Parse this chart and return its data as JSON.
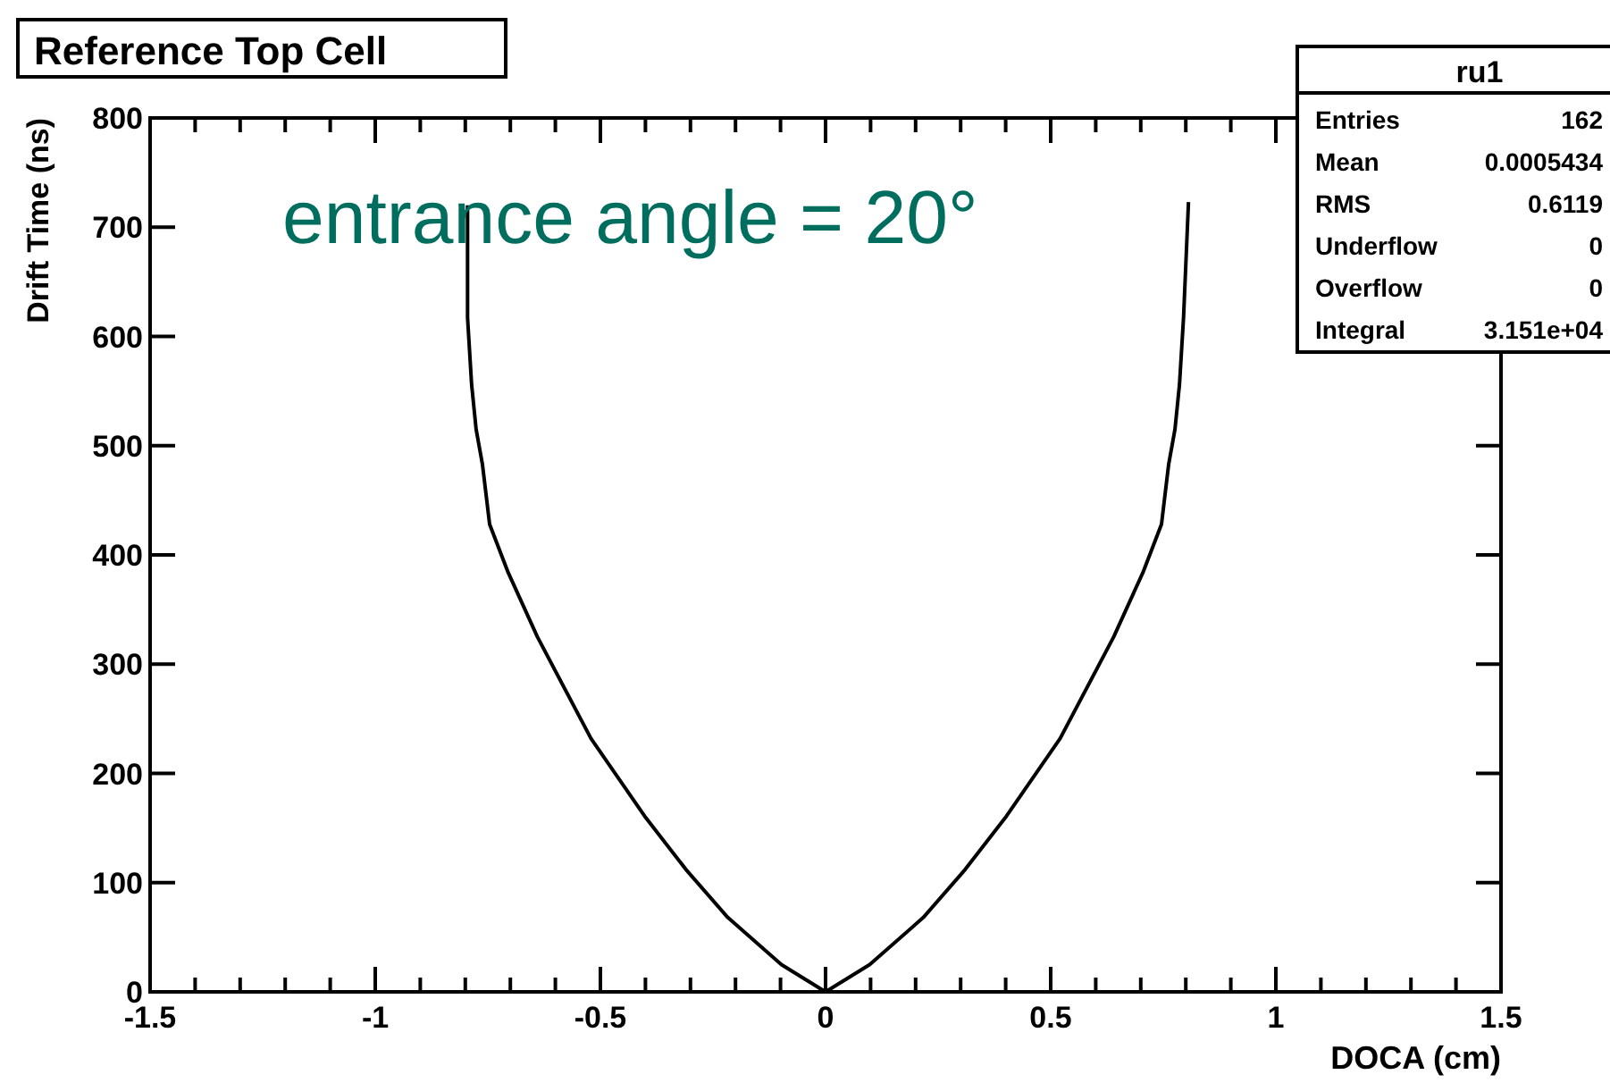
{
  "chart_data": {
    "type": "line",
    "title": "Reference Top Cell",
    "xlabel": "DOCA (cm)",
    "ylabel": "Drift Time (ns)",
    "annotations": [
      "entrance angle = 20°",
      "ru1",
      "Entries",
      "162",
      "Mean",
      "0.0005434",
      "RMS",
      "0.6119",
      "Underflow",
      "0",
      "Overflow",
      "0",
      "Integral",
      "3.151e+04"
    ],
    "xlim": [
      -1.5,
      1.5
    ],
    "ylim": [
      0,
      800
    ],
    "xticks": [
      -1.5,
      {
        "value": -1.4,
        "label": null
      },
      {
        "value": -1.3,
        "label": null
      },
      {
        "value": -1.2,
        "label": null
      },
      {
        "value": -1.1,
        "label": null
      },
      -1,
      {
        "value": -0.9,
        "label": null
      },
      {
        "value": -0.8,
        "label": null
      },
      {
        "value": -0.7,
        "label": null
      },
      {
        "value": -0.6,
        "label": null
      },
      -0.5,
      {
        "value": -0.4,
        "label": null
      },
      {
        "value": -0.3,
        "label": null
      },
      {
        "value": -0.2,
        "label": null
      },
      {
        "value": -0.1,
        "label": null
      },
      0,
      {
        "value": 0.1,
        "label": null
      },
      {
        "value": 0.2,
        "label": null
      },
      {
        "value": 0.3,
        "label": null
      },
      {
        "value": 0.4,
        "label": null
      },
      0.5,
      {
        "value": 0.6,
        "label": null
      },
      {
        "value": 0.7,
        "label": null
      },
      {
        "value": 0.8,
        "label": null
      },
      {
        "value": 0.9,
        "label": null
      },
      1,
      {
        "value": 1.1,
        "label": null
      },
      {
        "value": 1.2,
        "label": null
      },
      {
        "value": 1.3,
        "label": null
      },
      {
        "value": 1.4,
        "label": null
      },
      1.5
    ],
    "yticks": [
      0,
      100,
      200,
      300,
      400,
      500,
      600,
      700,
      800
    ],
    "grid": false,
    "marker": "none",
    "line_style": "solid",
    "series": [
      {
        "color": "#000000",
        "x": [
          -0.795,
          -0.795,
          -0.786,
          -0.776,
          -0.762,
          -0.746,
          -0.706,
          -0.64,
          -0.521,
          -0.402,
          -0.31,
          -0.217,
          -0.098,
          0,
          0.098,
          0.217,
          0.31,
          0.402,
          0.521,
          0.64,
          0.706,
          0.746,
          0.762,
          0.776,
          0.786,
          0.795,
          0.806
        ],
        "values": [
          720,
          617,
          556,
          515,
          483,
          428,
          385,
          325,
          232,
          161,
          112,
          68,
          25,
          0,
          25,
          68,
          112,
          161,
          232,
          325,
          385,
          428,
          483,
          515,
          556,
          617,
          723
        ]
      }
    ]
  }
}
